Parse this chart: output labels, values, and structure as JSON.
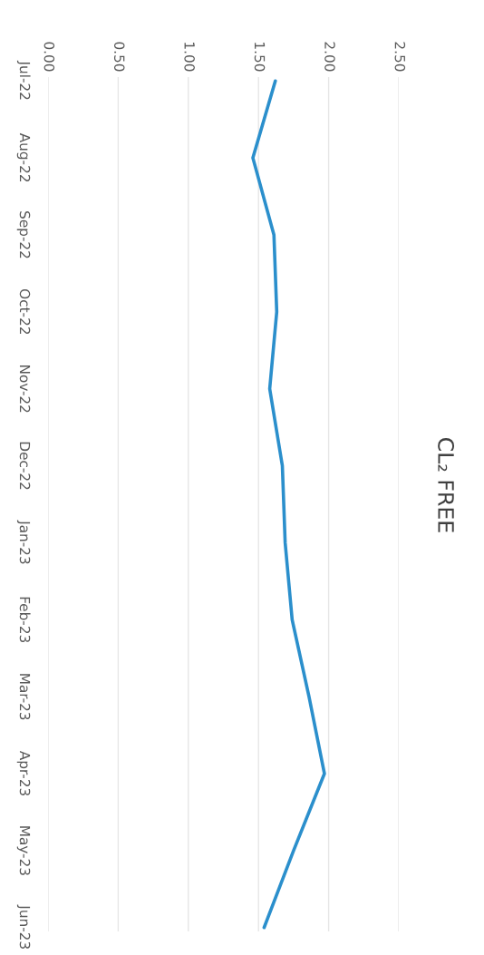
{
  "chart_data": {
    "type": "line",
    "title": "CL₂ FREE",
    "orientation": "horizontal",
    "categories": [
      "Jul-22",
      "Aug-22",
      "Sep-22",
      "Oct-22",
      "Nov-22",
      "Dec-22",
      "Jan-23",
      "Feb-23",
      "Mar-23",
      "Apr-23",
      "May-23",
      "Jun-23"
    ],
    "series": [
      {
        "color": "#2b8fcc",
        "values": [
          1.62,
          1.46,
          1.61,
          1.63,
          1.58,
          1.67,
          1.69,
          1.74,
          1.86,
          1.97,
          1.75,
          1.54
        ]
      }
    ],
    "xlim": [
      0,
      2.5
    ],
    "xticks": [
      {
        "value": 0,
        "label": "0.00"
      },
      {
        "value": 0.5,
        "label": "0.50"
      },
      {
        "value": 1,
        "label": "1.00"
      },
      {
        "value": 1.5,
        "label": "1.50"
      },
      {
        "value": 2,
        "label": "2.00"
      },
      {
        "value": 2.5,
        "label": "2.50"
      }
    ],
    "grid": "x",
    "marker": "none",
    "line_style": "solid"
  }
}
